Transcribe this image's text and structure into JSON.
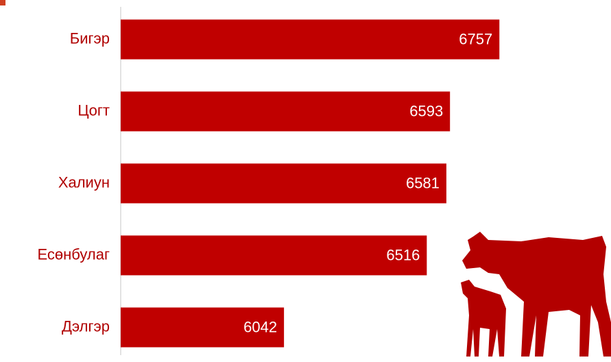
{
  "chart_data": {
    "type": "bar",
    "orientation": "horizontal",
    "categories": [
      "Бигэр",
      "Цогт",
      "Халиун",
      "Есөнбулаг",
      "Дэлгэр"
    ],
    "values": [
      6757,
      6593,
      6581,
      6516,
      6042
    ],
    "color": "#c00000",
    "xlim": [
      5500,
      7000
    ]
  }
}
